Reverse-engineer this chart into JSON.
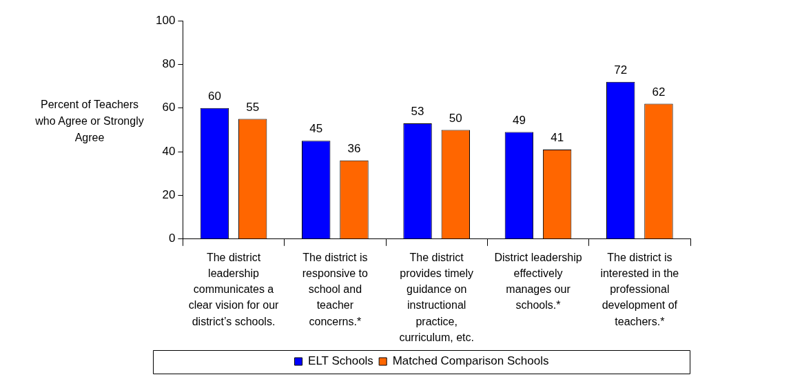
{
  "chart_data": {
    "type": "bar",
    "categories": [
      "The district leadership communicates a clear vision for our district’s schools.",
      "The district is responsive to school and teacher concerns.*",
      "The district provides timely guidance on instructional practice, curriculum, etc.",
      "District leadership effectively manages our schools.*",
      "The district is interested in the professional development of teachers.*"
    ],
    "series": [
      {
        "name": "ELT Schools",
        "color": "#0000ff",
        "values": [
          60,
          45,
          53,
          49,
          72
        ]
      },
      {
        "name": "Matched Comparison Schools",
        "color": "#ff6600",
        "values": [
          55,
          36,
          50,
          41,
          62
        ]
      }
    ],
    "ylabel": "Percent of Teachers who Agree or Strongly Agree",
    "ylim": [
      0,
      100
    ],
    "yticks": [
      0,
      20,
      40,
      60,
      80,
      100
    ],
    "grid": false,
    "legend": "bottom",
    "data_labels": true
  }
}
